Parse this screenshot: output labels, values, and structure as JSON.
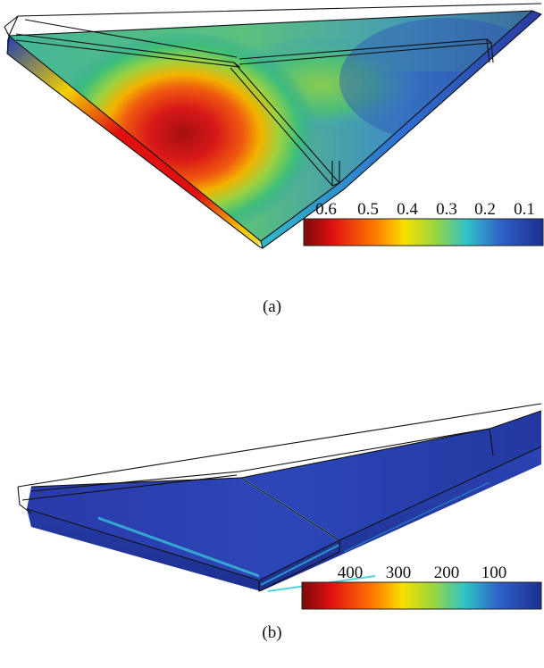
{
  "figure": {
    "panels": [
      {
        "caption": "(a)",
        "colorbar": {
          "ticks": [
            "0.6",
            "0.5",
            "0.4",
            "0.3",
            "0.2",
            "0.1"
          ],
          "colormap": [
            "#7a0a0a",
            "#e01010",
            "#ff7a00",
            "#f7e000",
            "#9ad640",
            "#2fc3c8",
            "#2f63c8",
            "#1c2f93"
          ]
        }
      },
      {
        "caption": "(b)",
        "colorbar": {
          "ticks": [
            "400",
            "300",
            "200",
            "100"
          ],
          "colormap": [
            "#7a0a0a",
            "#e01010",
            "#ff7a00",
            "#f7e000",
            "#9ad640",
            "#2fc3c8",
            "#2f63c8",
            "#1c2f93"
          ]
        }
      }
    ]
  }
}
